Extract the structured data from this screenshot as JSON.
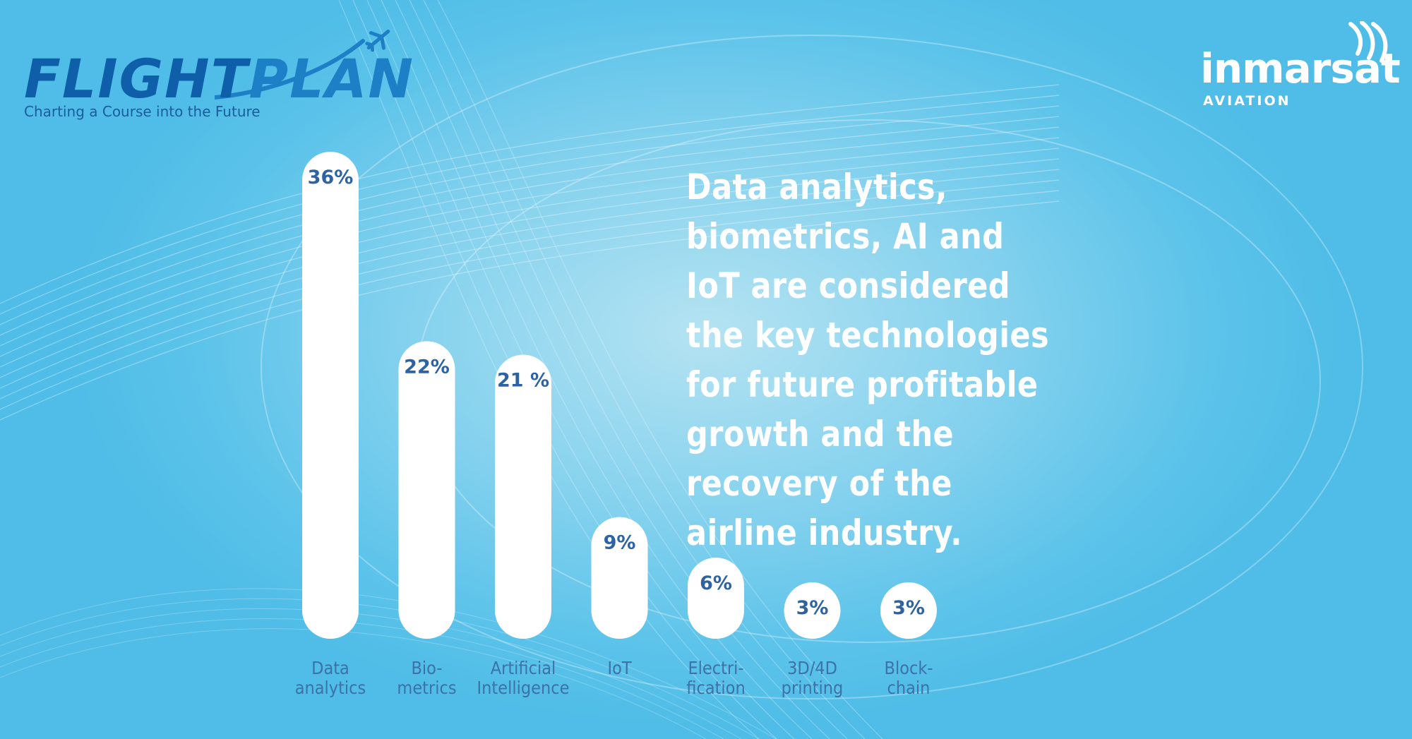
{
  "logo": {
    "flight": "FLIGHT",
    "plan": "PLAN",
    "tagline": "Charting a Course into the Future"
  },
  "brand": {
    "name": "inmarsat",
    "sub": "AVIATION"
  },
  "headline": "Data analytics, biometrics, AI and IoT are considered the key technologies for future profitable growth and the recovery of the airline industry.",
  "colors": {
    "bar": "#ffffff",
    "value_text": "#2e63a3",
    "label_text": "#3c72a8",
    "logo_dark": "#0e5ea9"
  },
  "chart_data": {
    "type": "bar",
    "categories": [
      [
        "Data",
        "analytics"
      ],
      [
        "Bio-",
        "metrics"
      ],
      [
        "Artificial",
        "Intelligence"
      ],
      [
        "IoT"
      ],
      [
        "Electri-",
        "fication"
      ],
      [
        "3D/4D",
        "printing"
      ],
      [
        "Block-",
        "chain"
      ]
    ],
    "values": [
      36,
      22,
      21,
      9,
      6,
      3,
      3
    ],
    "value_labels": [
      "36%",
      "22%",
      "21 %",
      "9%",
      "6%",
      "3%",
      "3%"
    ],
    "ylim": [
      0,
      36
    ],
    "grid": false,
    "legend": "none"
  }
}
